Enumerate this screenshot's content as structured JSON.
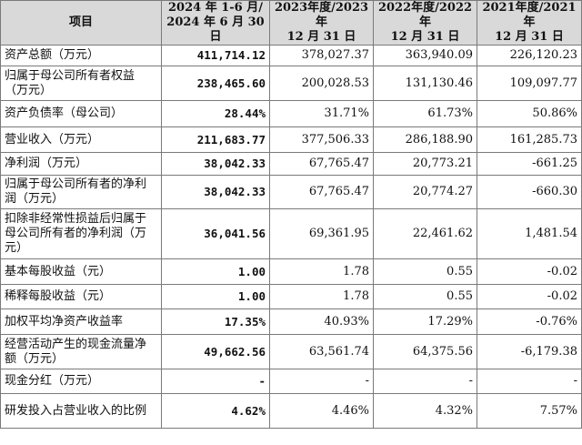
{
  "table": {
    "headers": [
      {
        "lines": [
          "项目"
        ]
      },
      {
        "lines": [
          "2024 年 1-6 月/",
          "2024 年 6 月 30 日"
        ]
      },
      {
        "lines": [
          "2023年度/2023年",
          "12 月 31 日"
        ]
      },
      {
        "lines": [
          "2022年度/2022年",
          "12 月 31 日"
        ]
      },
      {
        "lines": [
          "2021年度/2021年",
          "12 月 31 日"
        ]
      }
    ],
    "rows": [
      {
        "label": "资产总额（万元）",
        "values": [
          "411,714.12",
          "378,027.37",
          "363,940.09",
          "226,120.23"
        ]
      },
      {
        "label": "归属于母公司所有者权益（万元）",
        "values": [
          "238,465.60",
          "200,028.53",
          "131,130.46",
          "109,097.77"
        ]
      },
      {
        "label": "资产负债率（母公司）",
        "values": [
          "28.44%",
          "31.71%",
          "61.73%",
          "50.86%"
        ]
      },
      {
        "label": "营业收入（万元）",
        "values": [
          "211,683.77",
          "377,506.33",
          "286,188.90",
          "161,285.73"
        ]
      },
      {
        "label": "净利润（万元）",
        "values": [
          "38,042.33",
          "67,765.47",
          "20,773.21",
          "-661.25"
        ]
      },
      {
        "label": "归属于母公司所有者的净利润（万元）",
        "values": [
          "38,042.33",
          "67,765.47",
          "20,774.27",
          "-660.30"
        ]
      },
      {
        "label": "扣除非经常性损益后归属于母公司所有者的净利润（万元）",
        "values": [
          "36,041.56",
          "69,361.95",
          "22,461.62",
          "1,481.54"
        ]
      },
      {
        "label": "基本每股收益（元）",
        "values": [
          "1.00",
          "1.78",
          "0.55",
          "-0.02"
        ]
      },
      {
        "label": "稀释每股收益（元）",
        "values": [
          "1.00",
          "1.78",
          "0.55",
          "-0.02"
        ]
      },
      {
        "label": "加权平均净资产收益率",
        "values": [
          "17.35%",
          "40.93%",
          "17.29%",
          "-0.76%"
        ]
      },
      {
        "label": "经营活动产生的现金流量净额（万元）",
        "values": [
          "49,662.56",
          "63,561.74",
          "64,375.56",
          "-6,179.38"
        ]
      },
      {
        "label": "现金分红（万元）",
        "values": [
          "-",
          "-",
          "-",
          "-"
        ]
      },
      {
        "label": "研发投入占营业收入的比例",
        "values": [
          "4.62%",
          "4.46%",
          "4.32%",
          "7.57%"
        ]
      }
    ]
  }
}
